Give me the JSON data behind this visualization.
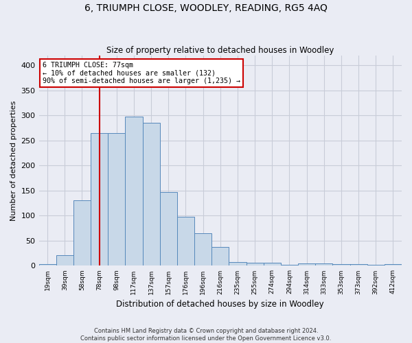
{
  "title": "6, TRIUMPH CLOSE, WOODLEY, READING, RG5 4AQ",
  "subtitle": "Size of property relative to detached houses in Woodley",
  "xlabel": "Distribution of detached houses by size in Woodley",
  "ylabel": "Number of detached properties",
  "footer_line1": "Contains HM Land Registry data © Crown copyright and database right 2024.",
  "footer_line2": "Contains public sector information licensed under the Open Government Licence v3.0.",
  "bin_labels": [
    "19sqm",
    "39sqm",
    "58sqm",
    "78sqm",
    "98sqm",
    "117sqm",
    "137sqm",
    "157sqm",
    "176sqm",
    "196sqm",
    "216sqm",
    "235sqm",
    "255sqm",
    "274sqm",
    "294sqm",
    "314sqm",
    "333sqm",
    "353sqm",
    "373sqm",
    "392sqm",
    "412sqm"
  ],
  "bar_heights": [
    3,
    21,
    130,
    265,
    265,
    298,
    285,
    147,
    98,
    65,
    38,
    8,
    6,
    6,
    2,
    5,
    5,
    3,
    3,
    2,
    3
  ],
  "bar_color": "#c8d8e8",
  "bar_edge_color": "#5588bb",
  "vline_index": 3,
  "vline_color": "#cc0000",
  "annotation_text": "6 TRIUMPH CLOSE: 77sqm\n← 10% of detached houses are smaller (132)\n90% of semi-detached houses are larger (1,235) →",
  "annotation_box_color": "#ffffff",
  "annotation_box_edge_color": "#cc0000",
  "ylim": [
    0,
    420
  ],
  "yticks": [
    0,
    50,
    100,
    150,
    200,
    250,
    300,
    350,
    400
  ],
  "grid_color": "#c8ccd8",
  "background_color": "#eaecf4",
  "title_fontsize": 10,
  "subtitle_fontsize": 8.5,
  "ylabel_fontsize": 8,
  "xlabel_fontsize": 8.5
}
